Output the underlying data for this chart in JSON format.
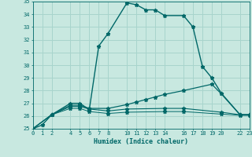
{
  "background_color": "#c8e8e0",
  "grid_color": "#a8d4cc",
  "line_color": "#006868",
  "xlabel": "Humidex (Indice chaleur)",
  "xlim": [
    0,
    23
  ],
  "ylim": [
    25,
    35
  ],
  "yticks": [
    25,
    26,
    27,
    28,
    29,
    30,
    31,
    32,
    33,
    34,
    35
  ],
  "xticks": [
    0,
    1,
    2,
    4,
    5,
    6,
    7,
    8,
    10,
    11,
    12,
    13,
    14,
    16,
    17,
    18,
    19,
    20,
    22,
    23
  ],
  "curve1_x": [
    0,
    1,
    2,
    4,
    5,
    6,
    7,
    8,
    10,
    11,
    12,
    13,
    14,
    16,
    17,
    18,
    19,
    20,
    22,
    23
  ],
  "curve1_y": [
    25.0,
    25.3,
    26.1,
    27.0,
    27.0,
    26.5,
    31.5,
    32.5,
    34.9,
    34.75,
    34.35,
    34.35,
    33.9,
    33.9,
    33.0,
    29.9,
    29.0,
    27.8,
    26.1,
    26.1
  ],
  "curve2_x": [
    0,
    2,
    4,
    5,
    6,
    8,
    10,
    11,
    12,
    13,
    14,
    16,
    19,
    20,
    22,
    23
  ],
  "curve2_y": [
    25.0,
    26.1,
    26.85,
    26.85,
    26.6,
    26.6,
    26.9,
    27.1,
    27.3,
    27.5,
    27.7,
    28.0,
    28.5,
    27.75,
    26.1,
    26.1
  ],
  "curve3_x": [
    0,
    2,
    4,
    5,
    6,
    8,
    10,
    14,
    16,
    20,
    22,
    23
  ],
  "curve3_y": [
    25.0,
    26.1,
    26.75,
    26.75,
    26.55,
    26.4,
    26.55,
    26.6,
    26.6,
    26.3,
    26.1,
    26.1
  ],
  "curve4_x": [
    0,
    2,
    4,
    5,
    6,
    8,
    10,
    14,
    16,
    20,
    22,
    23
  ],
  "curve4_y": [
    25.0,
    26.1,
    26.6,
    26.6,
    26.35,
    26.2,
    26.3,
    26.35,
    26.35,
    26.15,
    26.05,
    26.05
  ]
}
